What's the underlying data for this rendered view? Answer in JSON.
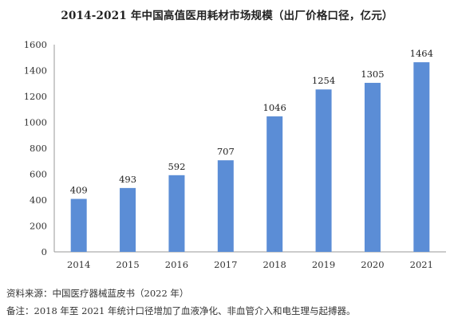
{
  "title": "2014-2021 年中国高值医用耗材市场规模（出厂价格口径，亿元）",
  "source": "资料来源：中国医疗器械蓝皮书（2022 年）",
  "note": "备注：2018 年至 2021 年统计口径增加了血液净化、非血管介入和电生理与起搏器。",
  "bar_color": "#5B8DD6",
  "chart_data": {
    "type": "bar",
    "title": "2014-2021 年中国高值医用耗材市场规模（出厂价格口径，亿元）",
    "categories": [
      "2014",
      "2015",
      "2016",
      "2017",
      "2018",
      "2019",
      "2020",
      "2021"
    ],
    "values": [
      409,
      493,
      592,
      707,
      1046,
      1254,
      1305,
      1464
    ],
    "data_labels": [
      "409",
      "493",
      "592",
      "707",
      "1046",
      "1254",
      "1305",
      "1464"
    ],
    "xlabel": "",
    "ylabel": "",
    "ylim": [
      0,
      1600
    ],
    "yticks": [
      0,
      200,
      400,
      600,
      800,
      1000,
      1200,
      1400,
      1600
    ],
    "grid": false,
    "legend": "none"
  }
}
